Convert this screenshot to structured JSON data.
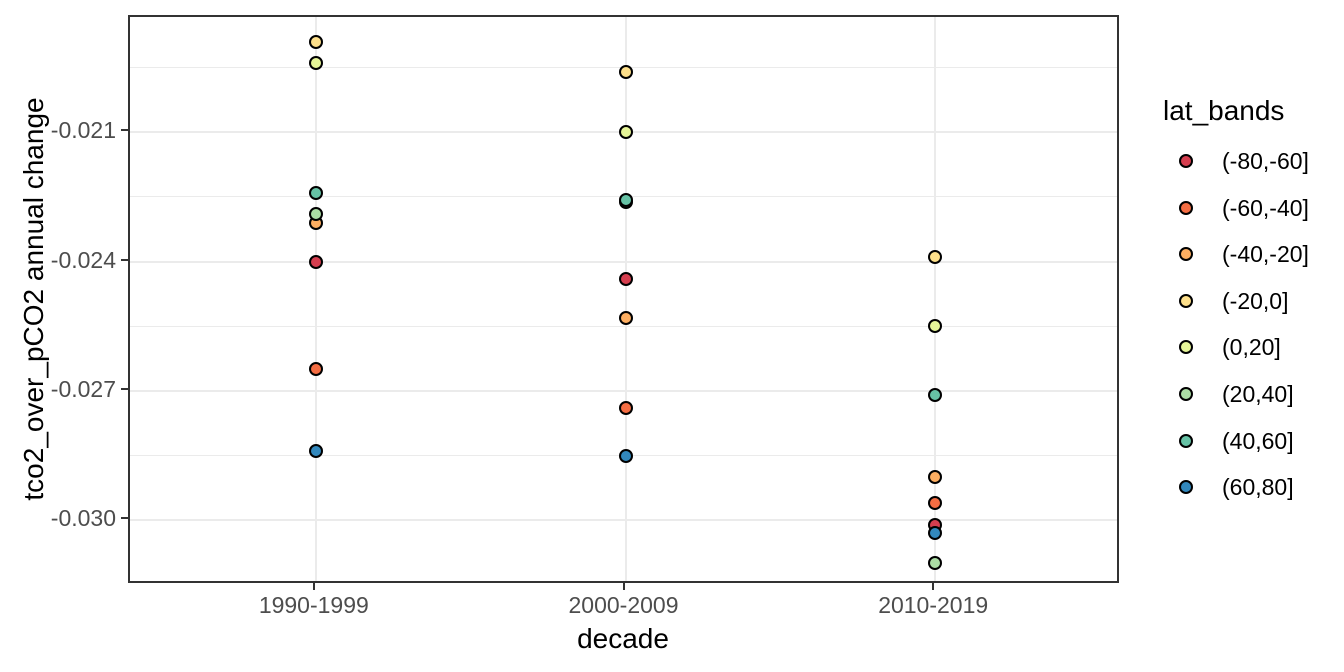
{
  "chart_data": {
    "type": "scatter",
    "title": "",
    "xlabel": "decade",
    "ylabel": "tco2_over_pCO2 annual change",
    "categories": [
      "1990-1999",
      "2000-2009",
      "2010-2019"
    ],
    "x_positions": [
      0.1875,
      0.5,
      0.8125
    ],
    "y_domain": [
      -0.0315,
      -0.01833
    ],
    "y_ticks": [
      -0.021,
      -0.024,
      -0.027,
      -0.03
    ],
    "y_tick_labels": [
      "-0.021",
      "-0.024",
      "-0.027",
      "-0.030"
    ],
    "y_minor_ticks": [
      -0.0195,
      -0.0225,
      -0.0255,
      -0.0285
    ],
    "grid": "on",
    "legend_title": "lat_bands",
    "legend_position": "right",
    "point_style": {
      "shape": "circle-filled-outlined",
      "outline": "#000000",
      "radius_px": 7
    },
    "series": [
      {
        "name": "(-80,-60]",
        "color": "#d53e4f",
        "values": [
          -0.024,
          -0.0244,
          -0.0301
        ]
      },
      {
        "name": "(-60,-40]",
        "color": "#f46d43",
        "values": [
          -0.0265,
          -0.0274,
          -0.0296
        ]
      },
      {
        "name": "(-40,-20]",
        "color": "#fdae61",
        "values": [
          -0.0231,
          -0.0253,
          -0.029
        ]
      },
      {
        "name": "(-20,0]",
        "color": "#fee08b",
        "values": [
          -0.0189,
          -0.0196,
          -0.0239
        ]
      },
      {
        "name": "(0,20]",
        "color": "#e6f598",
        "values": [
          -0.0194,
          -0.021,
          -0.0255
        ]
      },
      {
        "name": "(20,40]",
        "color": "#abdda4",
        "values": [
          -0.0229,
          -0.02263,
          -0.031
        ]
      },
      {
        "name": "(40,60]",
        "color": "#66c2a5",
        "values": [
          -0.0224,
          -0.02258,
          -0.0271
        ]
      },
      {
        "name": "(60,80]",
        "color": "#3288bd",
        "values": [
          -0.0284,
          -0.0285,
          -0.0303
        ]
      }
    ],
    "style": {
      "panel_border_color": "#333333",
      "grid_color": "#ebebeb",
      "tick_color": "#333333",
      "tick_label_color": "#4d4d4d",
      "title_color": "#000000",
      "background": "#ffffff"
    }
  }
}
